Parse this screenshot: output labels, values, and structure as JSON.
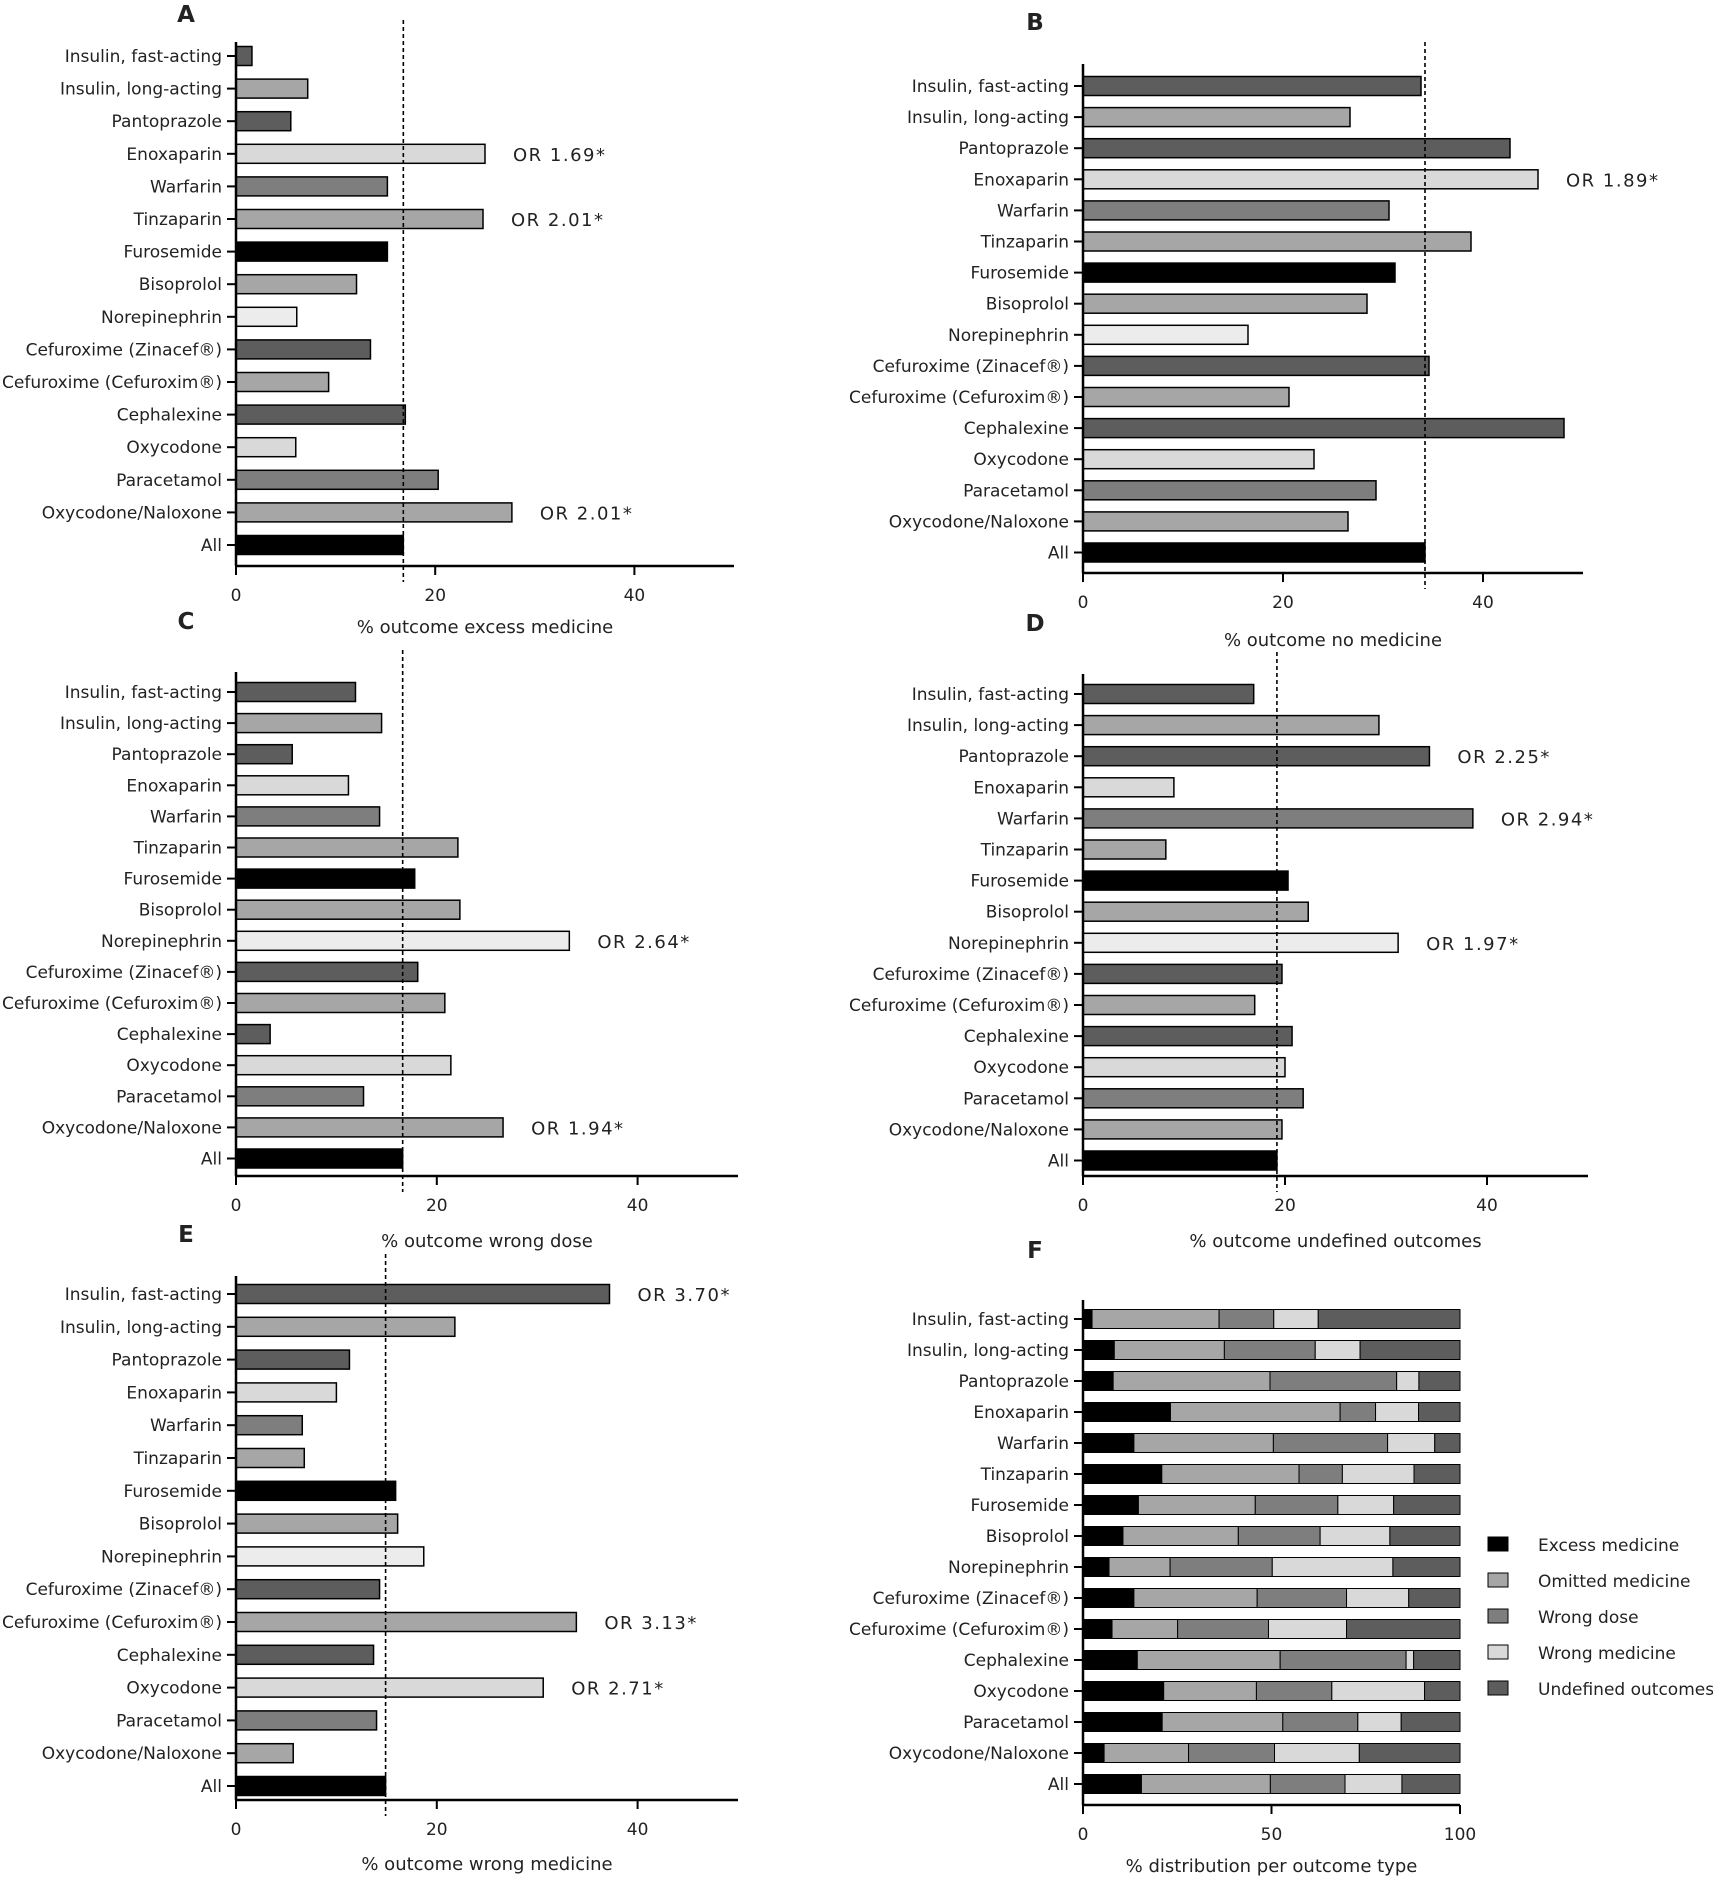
{
  "categories": [
    "Insulin, fast-acting",
    "Insulin, long-acting",
    "Pantoprazole",
    "Enoxaparin",
    "Warfarin",
    "Tinzaparin",
    "Furosemide",
    "Bisoprolol",
    "Norepinephrin",
    "Cefuroxime (Zinacef®)",
    "Cefuroxime (Cefuroxim®)",
    "Cephalexine",
    "Oxycodone",
    "Paracetamol",
    "Oxycodone/Naloxone",
    "All"
  ],
  "bar_colors": [
    "#5d5d5d",
    "#a6a6a6",
    "#5d5d5d",
    "#d9d9d9",
    "#7e7e7e",
    "#a6a6a6",
    "#000000",
    "#a6a6a6",
    "#ececec",
    "#5d5d5d",
    "#a6a6a6",
    "#5d5d5d",
    "#d9d9d9",
    "#7e7e7e",
    "#a6a6a6",
    "#000000"
  ],
  "chart_data": [
    {
      "panel": "A",
      "type": "bar",
      "orientation": "horizontal",
      "xlabel": "% outcome excess medicine",
      "xlim": [
        0,
        50
      ],
      "xticks": [
        0,
        20,
        40
      ],
      "reference_line": 16.8,
      "values": [
        1.6,
        7.2,
        5.5,
        25,
        15.2,
        24.8,
        15.2,
        12.1,
        6.1,
        13.5,
        9.3,
        17,
        6,
        20.3,
        27.7,
        16.8
      ],
      "annotations": [
        {
          "category": "Enoxaparin",
          "text": "OR 1.69*"
        },
        {
          "category": "Tinzaparin",
          "text": "OR 2.01*"
        },
        {
          "category": "Oxycodone/Naloxone",
          "text": "OR 2.01*"
        }
      ]
    },
    {
      "panel": "B",
      "type": "bar",
      "orientation": "horizontal",
      "xlabel": "% outcome no medicine",
      "xlim": [
        0,
        50
      ],
      "xticks": [
        0,
        20,
        40
      ],
      "reference_line": 34.2,
      "values": [
        33.8,
        26.7,
        42.7,
        45.5,
        30.6,
        38.8,
        31.2,
        28.4,
        16.5,
        34.6,
        20.6,
        48.1,
        23.1,
        29.3,
        26.5,
        34.2
      ],
      "annotations": [
        {
          "category": "Enoxaparin",
          "text": "OR 1.89*"
        }
      ]
    },
    {
      "panel": "C",
      "type": "bar",
      "orientation": "horizontal",
      "xlabel": "% outcome wrong dose",
      "xlim": [
        0,
        50
      ],
      "xticks": [
        0,
        20,
        40
      ],
      "reference_line": 16.6,
      "values": [
        11.9,
        14.5,
        5.6,
        11.2,
        14.3,
        22.1,
        17.8,
        22.3,
        33.2,
        18.1,
        20.8,
        3.4,
        21.4,
        12.7,
        26.6,
        16.6
      ],
      "annotations": [
        {
          "category": "Norepinephrin",
          "text": "OR 2.64*"
        },
        {
          "category": "Oxycodone/Naloxone",
          "text": "OR 1.94*"
        }
      ]
    },
    {
      "panel": "D",
      "type": "bar",
      "orientation": "horizontal",
      "xlabel": "% outcome undefined outcomes",
      "xlim": [
        0,
        50
      ],
      "xticks": [
        0,
        20,
        40
      ],
      "reference_line": 19.2,
      "values": [
        16.9,
        29.3,
        34.3,
        9.0,
        38.6,
        8.2,
        20.3,
        22.3,
        31.2,
        19.7,
        17.0,
        20.7,
        20.0,
        21.8,
        19.7,
        19.2
      ],
      "annotations": [
        {
          "category": "Pantoprazole",
          "text": "OR 2.25*"
        },
        {
          "category": "Warfarin",
          "text": "OR 2.94*"
        },
        {
          "category": "Norepinephrin",
          "text": "OR 1.97*"
        }
      ]
    },
    {
      "panel": "E",
      "type": "bar",
      "orientation": "horizontal",
      "xlabel": "% outcome wrong medicine",
      "xlim": [
        0,
        50
      ],
      "xticks": [
        0,
        20,
        40
      ],
      "reference_line": 14.9,
      "values": [
        37.2,
        21.8,
        11.3,
        10.0,
        6.6,
        6.8,
        15.9,
        16.1,
        18.7,
        14.3,
        33.9,
        13.7,
        30.6,
        14.0,
        5.7,
        14.9
      ],
      "annotations": [
        {
          "category": "Insulin, fast-acting",
          "text": "OR 3.70*"
        },
        {
          "category": "Cefuroxime (Cefuroxim®)",
          "text": "OR 3.13*"
        },
        {
          "category": "Oxycodone",
          "text": "OR 2.71*"
        }
      ]
    },
    {
      "panel": "F",
      "type": "stacked_bar",
      "orientation": "horizontal",
      "xlabel": "% distribution per outcome type",
      "xlim": [
        0,
        100
      ],
      "xticks": [
        0,
        50,
        100
      ],
      "legend_position": "right",
      "series": [
        {
          "name": "Excess medicine",
          "color": "#000000",
          "values": [
            2.4,
            8.3,
            8.0,
            23.2,
            13.5,
            20.9,
            14.7,
            10.6,
            6.9,
            13.5,
            7.7,
            14.4,
            21.4,
            21.0,
            5.6,
            15.5
          ]
        },
        {
          "name": "Omitted medicine",
          "color": "#a6a6a6",
          "values": [
            33.7,
            29.2,
            41.6,
            45.0,
            37.0,
            36.4,
            31.0,
            30.6,
            16.2,
            32.7,
            17.4,
            37.9,
            24.6,
            32.0,
            22.4,
            34.2
          ]
        },
        {
          "name": "Wrong dose",
          "color": "#7e7e7e",
          "values": [
            14.5,
            24.1,
            33.6,
            9.4,
            30.3,
            11.5,
            21.9,
            21.7,
            27.1,
            23.7,
            24.1,
            33.4,
            20.0,
            19.9,
            22.8,
            19.8
          ]
        },
        {
          "name": "Wrong medicine",
          "color": "#d9d9d9",
          "values": [
            11.8,
            11.9,
            5.9,
            11.4,
            12.5,
            19.0,
            14.8,
            18.5,
            32.0,
            16.5,
            20.7,
            2.0,
            24.6,
            11.5,
            22.5,
            15.1
          ]
        },
        {
          "name": "Undefined outcomes",
          "color": "#5d5d5d",
          "values": [
            37.6,
            26.5,
            10.9,
            11.0,
            6.7,
            12.2,
            17.6,
            18.6,
            17.8,
            13.6,
            30.1,
            12.3,
            9.4,
            15.6,
            26.7,
            15.4
          ]
        }
      ]
    }
  ]
}
